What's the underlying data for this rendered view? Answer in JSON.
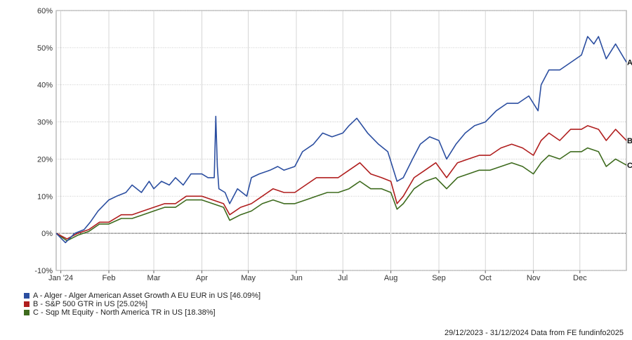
{
  "chart_data": {
    "type": "line",
    "ylim": [
      -10,
      60
    ],
    "yticks": [
      "60%",
      "50%",
      "40%",
      "30%",
      "20%",
      "10%",
      "0%",
      "-10%"
    ],
    "ytick_values": [
      60,
      50,
      40,
      30,
      20,
      10,
      0,
      -10
    ],
    "x_range": [
      "2023-12-29",
      "2024-12-31"
    ],
    "xticks": [
      {
        "label": "Jan '24",
        "date": "2024-01-01"
      },
      {
        "label": "Feb",
        "date": "2024-02-01"
      },
      {
        "label": "Mar",
        "date": "2024-03-01"
      },
      {
        "label": "Apr",
        "date": "2024-04-01"
      },
      {
        "label": "May",
        "date": "2024-05-01"
      },
      {
        "label": "Jun",
        "date": "2024-06-01"
      },
      {
        "label": "Jul",
        "date": "2024-07-01"
      },
      {
        "label": "Aug",
        "date": "2024-08-01"
      },
      {
        "label": "Sep",
        "date": "2024-09-01"
      },
      {
        "label": "Oct",
        "date": "2024-10-01"
      },
      {
        "label": "Nov",
        "date": "2024-11-01"
      },
      {
        "label": "Dec",
        "date": "2024-12-01"
      }
    ],
    "grid": true,
    "legend_position": "bottom-left",
    "series": [
      {
        "name": "A - Alger - Alger American Asset Growth A EU EUR in US [46.09%]",
        "end_label": "A",
        "color": "#2b4ea0",
        "points": [
          [
            "2023-12-29",
            0
          ],
          [
            "2024-01-04",
            -2.5
          ],
          [
            "2024-01-10",
            0
          ],
          [
            "2024-01-16",
            1
          ],
          [
            "2024-01-20",
            3
          ],
          [
            "2024-01-25",
            6
          ],
          [
            "2024-02-01",
            9
          ],
          [
            "2024-02-06",
            10
          ],
          [
            "2024-02-12",
            11
          ],
          [
            "2024-02-16",
            13
          ],
          [
            "2024-02-22",
            11
          ],
          [
            "2024-02-27",
            14
          ],
          [
            "2024-03-01",
            12
          ],
          [
            "2024-03-06",
            14
          ],
          [
            "2024-03-11",
            13
          ],
          [
            "2024-03-15",
            15
          ],
          [
            "2024-03-20",
            13
          ],
          [
            "2024-03-25",
            16
          ],
          [
            "2024-04-01",
            16
          ],
          [
            "2024-04-05",
            15
          ],
          [
            "2024-04-09",
            15
          ],
          [
            "2024-04-10",
            31.5
          ],
          [
            "2024-04-11",
            18
          ],
          [
            "2024-04-12",
            12
          ],
          [
            "2024-04-16",
            11
          ],
          [
            "2024-04-19",
            8
          ],
          [
            "2024-04-24",
            12
          ],
          [
            "2024-04-30",
            10
          ],
          [
            "2024-05-03",
            15
          ],
          [
            "2024-05-08",
            16
          ],
          [
            "2024-05-15",
            17
          ],
          [
            "2024-05-20",
            18
          ],
          [
            "2024-05-24",
            17
          ],
          [
            "2024-05-31",
            18
          ],
          [
            "2024-06-05",
            22
          ],
          [
            "2024-06-12",
            24
          ],
          [
            "2024-06-18",
            27
          ],
          [
            "2024-06-24",
            26
          ],
          [
            "2024-07-01",
            27
          ],
          [
            "2024-07-05",
            29
          ],
          [
            "2024-07-10",
            31
          ],
          [
            "2024-07-17",
            27
          ],
          [
            "2024-07-24",
            24
          ],
          [
            "2024-07-30",
            22
          ],
          [
            "2024-08-05",
            14
          ],
          [
            "2024-08-09",
            15
          ],
          [
            "2024-08-15",
            20
          ],
          [
            "2024-08-20",
            24
          ],
          [
            "2024-08-26",
            26
          ],
          [
            "2024-09-01",
            25
          ],
          [
            "2024-09-06",
            20
          ],
          [
            "2024-09-12",
            24
          ],
          [
            "2024-09-18",
            27
          ],
          [
            "2024-09-24",
            29
          ],
          [
            "2024-10-01",
            30
          ],
          [
            "2024-10-08",
            33
          ],
          [
            "2024-10-15",
            35
          ],
          [
            "2024-10-22",
            35
          ],
          [
            "2024-10-29",
            37
          ],
          [
            "2024-11-04",
            33
          ],
          [
            "2024-11-06",
            40
          ],
          [
            "2024-11-11",
            44
          ],
          [
            "2024-11-18",
            44
          ],
          [
            "2024-11-25",
            46
          ],
          [
            "2024-12-02",
            48
          ],
          [
            "2024-12-06",
            53
          ],
          [
            "2024-12-10",
            51
          ],
          [
            "2024-12-13",
            53
          ],
          [
            "2024-12-18",
            47
          ],
          [
            "2024-12-24",
            51
          ],
          [
            "2024-12-31",
            46.09
          ]
        ]
      },
      {
        "name": "B - S&P 500 GTR in US [25.02%]",
        "end_label": "B",
        "color": "#b01e1e",
        "points": [
          [
            "2023-12-29",
            0
          ],
          [
            "2024-01-05",
            -1.5
          ],
          [
            "2024-01-12",
            0
          ],
          [
            "2024-01-19",
            1
          ],
          [
            "2024-01-26",
            3
          ],
          [
            "2024-02-01",
            3
          ],
          [
            "2024-02-09",
            5
          ],
          [
            "2024-02-16",
            5
          ],
          [
            "2024-02-23",
            6
          ],
          [
            "2024-03-01",
            7
          ],
          [
            "2024-03-08",
            8
          ],
          [
            "2024-03-15",
            8
          ],
          [
            "2024-03-22",
            10
          ],
          [
            "2024-04-01",
            10
          ],
          [
            "2024-04-08",
            9
          ],
          [
            "2024-04-15",
            8
          ],
          [
            "2024-04-19",
            5
          ],
          [
            "2024-04-26",
            7
          ],
          [
            "2024-05-03",
            8
          ],
          [
            "2024-05-10",
            10
          ],
          [
            "2024-05-17",
            12
          ],
          [
            "2024-05-24",
            11
          ],
          [
            "2024-05-31",
            11
          ],
          [
            "2024-06-07",
            13
          ],
          [
            "2024-06-14",
            15
          ],
          [
            "2024-06-21",
            15
          ],
          [
            "2024-06-28",
            15
          ],
          [
            "2024-07-05",
            17
          ],
          [
            "2024-07-12",
            19
          ],
          [
            "2024-07-19",
            16
          ],
          [
            "2024-07-26",
            15
          ],
          [
            "2024-08-01",
            14
          ],
          [
            "2024-08-05",
            8
          ],
          [
            "2024-08-09",
            10
          ],
          [
            "2024-08-16",
            15
          ],
          [
            "2024-08-23",
            17
          ],
          [
            "2024-08-30",
            19
          ],
          [
            "2024-09-06",
            15
          ],
          [
            "2024-09-13",
            19
          ],
          [
            "2024-09-20",
            20
          ],
          [
            "2024-09-27",
            21
          ],
          [
            "2024-10-04",
            21
          ],
          [
            "2024-10-11",
            23
          ],
          [
            "2024-10-18",
            24
          ],
          [
            "2024-10-25",
            23
          ],
          [
            "2024-11-01",
            21
          ],
          [
            "2024-11-06",
            25
          ],
          [
            "2024-11-11",
            27
          ],
          [
            "2024-11-18",
            25
          ],
          [
            "2024-11-25",
            28
          ],
          [
            "2024-12-02",
            28
          ],
          [
            "2024-12-06",
            29
          ],
          [
            "2024-12-13",
            28
          ],
          [
            "2024-12-18",
            25
          ],
          [
            "2024-12-24",
            28
          ],
          [
            "2024-12-31",
            25.02
          ]
        ]
      },
      {
        "name": "C - Sqp Mt Equity - North America TR in US [18.38%]",
        "end_label": "C",
        "color": "#3e6b1e",
        "points": [
          [
            "2023-12-29",
            0
          ],
          [
            "2024-01-05",
            -2
          ],
          [
            "2024-01-12",
            -0.5
          ],
          [
            "2024-01-19",
            0.5
          ],
          [
            "2024-01-26",
            2.5
          ],
          [
            "2024-02-01",
            2.5
          ],
          [
            "2024-02-09",
            4
          ],
          [
            "2024-02-16",
            4
          ],
          [
            "2024-02-23",
            5
          ],
          [
            "2024-03-01",
            6
          ],
          [
            "2024-03-08",
            7
          ],
          [
            "2024-03-15",
            7
          ],
          [
            "2024-03-22",
            9
          ],
          [
            "2024-04-01",
            9
          ],
          [
            "2024-04-08",
            8
          ],
          [
            "2024-04-15",
            7
          ],
          [
            "2024-04-19",
            3.5
          ],
          [
            "2024-04-26",
            5
          ],
          [
            "2024-05-03",
            6
          ],
          [
            "2024-05-10",
            8
          ],
          [
            "2024-05-17",
            9
          ],
          [
            "2024-05-24",
            8
          ],
          [
            "2024-05-31",
            8
          ],
          [
            "2024-06-07",
            9
          ],
          [
            "2024-06-14",
            10
          ],
          [
            "2024-06-21",
            11
          ],
          [
            "2024-06-28",
            11
          ],
          [
            "2024-07-05",
            12
          ],
          [
            "2024-07-12",
            14
          ],
          [
            "2024-07-19",
            12
          ],
          [
            "2024-07-26",
            12
          ],
          [
            "2024-08-01",
            11
          ],
          [
            "2024-08-05",
            6.5
          ],
          [
            "2024-08-09",
            8
          ],
          [
            "2024-08-16",
            12
          ],
          [
            "2024-08-23",
            14
          ],
          [
            "2024-08-30",
            15
          ],
          [
            "2024-09-06",
            12
          ],
          [
            "2024-09-13",
            15
          ],
          [
            "2024-09-20",
            16
          ],
          [
            "2024-09-27",
            17
          ],
          [
            "2024-10-04",
            17
          ],
          [
            "2024-10-11",
            18
          ],
          [
            "2024-10-18",
            19
          ],
          [
            "2024-10-25",
            18
          ],
          [
            "2024-11-01",
            16
          ],
          [
            "2024-11-06",
            19
          ],
          [
            "2024-11-11",
            21
          ],
          [
            "2024-11-18",
            20
          ],
          [
            "2024-11-25",
            22
          ],
          [
            "2024-12-02",
            22
          ],
          [
            "2024-12-06",
            23
          ],
          [
            "2024-12-13",
            22
          ],
          [
            "2024-12-18",
            18
          ],
          [
            "2024-12-24",
            20
          ],
          [
            "2024-12-31",
            18.38
          ]
        ]
      }
    ]
  },
  "footer_text": "29/12/2023 - 31/12/2024 Data from FE fundinfo2025"
}
